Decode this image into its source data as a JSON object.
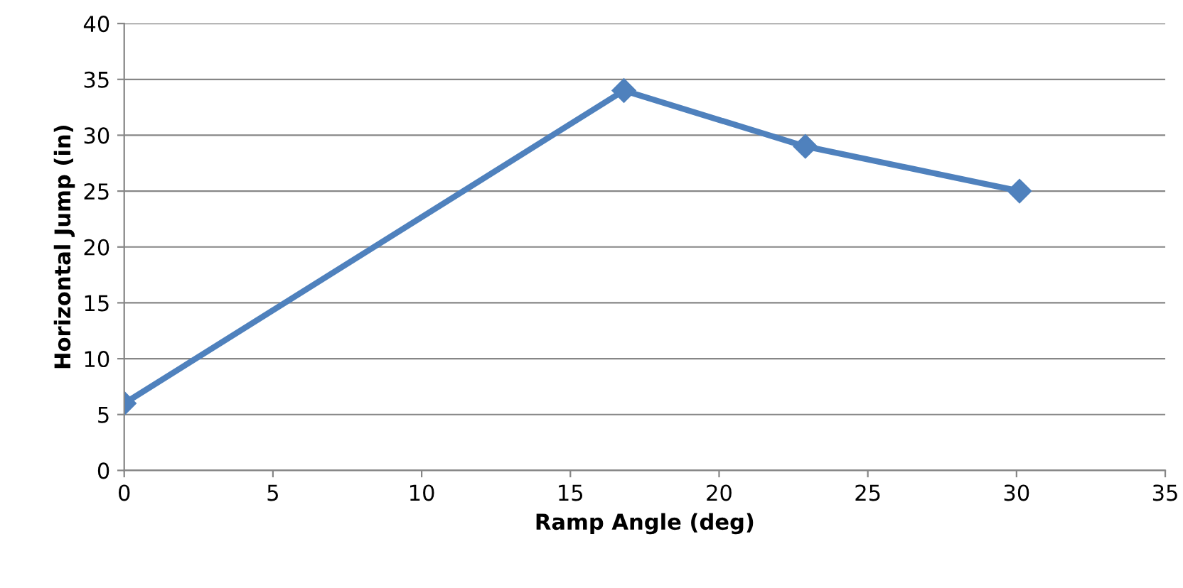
{
  "chart_data": {
    "type": "line",
    "xlabel": "Ramp Angle (deg)",
    "ylabel": "Horizontal Jump (in)",
    "x": [
      0,
      16.8,
      22.9,
      30.1
    ],
    "series": [
      {
        "color": "#4f81bd",
        "values": [
          6,
          34,
          29,
          25
        ]
      }
    ],
    "xlim": [
      0,
      35
    ],
    "xticks": [
      0,
      5,
      10,
      15,
      20,
      25,
      30,
      35
    ],
    "ylim": [
      0,
      40
    ],
    "yticks": [
      0,
      5,
      10,
      15,
      20,
      25,
      30,
      35,
      40
    ],
    "grid": "y",
    "marker": "diamond",
    "line_style": "solid"
  }
}
